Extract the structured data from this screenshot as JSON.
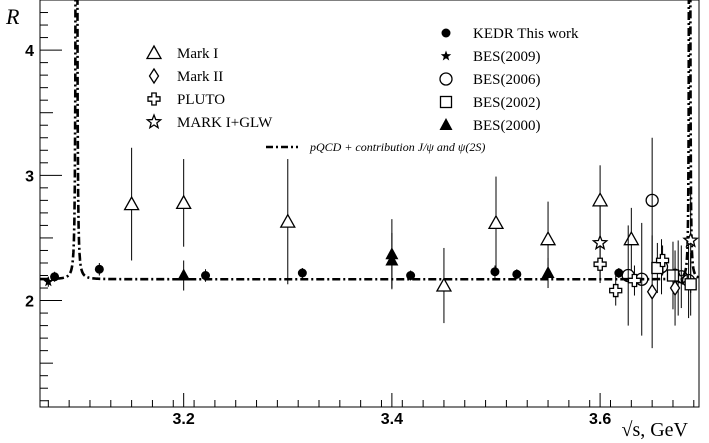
{
  "chart_data": {
    "type": "scatter",
    "xlabel": "√s, GeV",
    "ylabel": "R",
    "xlim": [
      3.062,
      3.695
    ],
    "ylim": [
      1.15,
      4.4
    ],
    "x_ticks": [
      3.2,
      3.4,
      3.6
    ],
    "y_ticks": [
      2,
      3,
      4
    ],
    "x_tick_labels": [
      "3.2",
      "3.4",
      "3.6"
    ],
    "y_tick_labels": [
      "2",
      "3",
      "4"
    ],
    "legend": [
      {
        "label": "Mark I",
        "marker": "triangle-open"
      },
      {
        "label": "Mark II",
        "marker": "diamond-open"
      },
      {
        "label": "PLUTO",
        "marker": "cross-open"
      },
      {
        "label": "MARK I+GLW",
        "marker": "star-open"
      },
      {
        "label": "KEDR This work",
        "marker": "circle-filled"
      },
      {
        "label": "BES(2009)",
        "marker": "star-filled"
      },
      {
        "label": "BES(2006)",
        "marker": "circle-open"
      },
      {
        "label": "BES(2002)",
        "marker": "square-open"
      },
      {
        "label": "BES(2000)",
        "marker": "triangle-filled"
      },
      {
        "label": "pQCD + contribution J/ψ and ψ(2S)",
        "marker": "dashdot-line"
      }
    ],
    "series": [
      {
        "name": "KEDR This work",
        "marker": "circle-filled",
        "points": [
          {
            "x": 3.076,
            "y": 2.19,
            "err": 0.04
          },
          {
            "x": 3.119,
            "y": 2.25,
            "err": 0.05
          },
          {
            "x": 3.221,
            "y": 2.2,
            "err": 0.05
          },
          {
            "x": 3.314,
            "y": 2.22,
            "err": 0.04
          },
          {
            "x": 3.418,
            "y": 2.2,
            "err": 0.04
          },
          {
            "x": 3.499,
            "y": 2.23,
            "err": 0.05
          },
          {
            "x": 3.52,
            "y": 2.21,
            "err": 0.04
          },
          {
            "x": 3.618,
            "y": 2.22,
            "err": 0.04
          },
          {
            "x": 3.672,
            "y": 2.22,
            "err": 0.05
          }
        ]
      },
      {
        "name": "BES(2009)",
        "marker": "star-filled",
        "points": [
          {
            "x": 3.07,
            "y": 2.15,
            "err": 0.04
          }
        ]
      },
      {
        "name": "BES(2000)",
        "marker": "triangle-filled",
        "points": [
          {
            "x": 3.2,
            "y": 2.2,
            "err": 0.12
          },
          {
            "x": 3.4,
            "y": 2.37,
            "err": 0.28
          },
          {
            "x": 3.4,
            "y": 2.32,
            "err": 0.22
          },
          {
            "x": 3.55,
            "y": 2.22,
            "err": 0.12
          }
        ]
      },
      {
        "name": "Mark I",
        "marker": "triangle-open",
        "points": [
          {
            "x": 3.15,
            "y": 2.77,
            "err": 0.45
          },
          {
            "x": 3.2,
            "y": 2.78,
            "err": 0.35
          },
          {
            "x": 3.3,
            "y": 2.63,
            "err": 0.5
          },
          {
            "x": 3.45,
            "y": 2.12,
            "err": 0.3
          },
          {
            "x": 3.5,
            "y": 2.62,
            "err": 0.37
          },
          {
            "x": 3.55,
            "y": 2.49,
            "err": 0.3
          },
          {
            "x": 3.6,
            "y": 2.8,
            "err": 0.28
          },
          {
            "x": 3.63,
            "y": 2.49,
            "err": 0.25
          }
        ]
      },
      {
        "name": "MARK I+GLW",
        "marker": "star-open",
        "points": [
          {
            "x": 3.6,
            "y": 2.46,
            "err": 0.3
          },
          {
            "x": 3.675,
            "y": 2.18,
            "err": 0.3
          },
          {
            "x": 3.687,
            "y": 2.48,
            "err": 0.42
          }
        ]
      },
      {
        "name": "BES(2006)",
        "marker": "circle-open",
        "points": [
          {
            "x": 3.627,
            "y": 2.2,
            "err": 0.4
          },
          {
            "x": 3.64,
            "y": 2.17,
            "err": 0.45
          },
          {
            "x": 3.65,
            "y": 2.8,
            "err": 0.5
          },
          {
            "x": 3.659,
            "y": 2.27,
            "err": 0.22
          },
          {
            "x": 3.678,
            "y": 2.19,
            "err": 0.25
          },
          {
            "x": 3.685,
            "y": 2.16,
            "err": 0.3
          }
        ]
      },
      {
        "name": "BES(2002)",
        "marker": "square-open",
        "points": [
          {
            "x": 3.655,
            "y": 2.26,
            "err": 0.2
          },
          {
            "x": 3.67,
            "y": 2.2,
            "err": 0.27
          },
          {
            "x": 3.687,
            "y": 2.13,
            "err": 0.25
          }
        ]
      },
      {
        "name": "Mark II",
        "marker": "diamond-open",
        "points": [
          {
            "x": 3.65,
            "y": 2.07,
            "err": 0.45
          },
          {
            "x": 3.672,
            "y": 2.1,
            "err": 0.3
          }
        ]
      },
      {
        "name": "PLUTO",
        "marker": "cross-open",
        "points": [
          {
            "x": 3.6,
            "y": 2.29,
            "err": 0.15
          },
          {
            "x": 3.615,
            "y": 2.08,
            "err": 0.12
          },
          {
            "x": 3.633,
            "y": 2.16,
            "err": 0.12
          },
          {
            "x": 3.66,
            "y": 2.32,
            "err": 0.12
          }
        ]
      }
    ],
    "curve": {
      "name": "pQCD + contribution J/ψ and ψ(2S)",
      "baseline": 2.17,
      "resonance_peaks": [
        3.097,
        3.686
      ]
    }
  }
}
